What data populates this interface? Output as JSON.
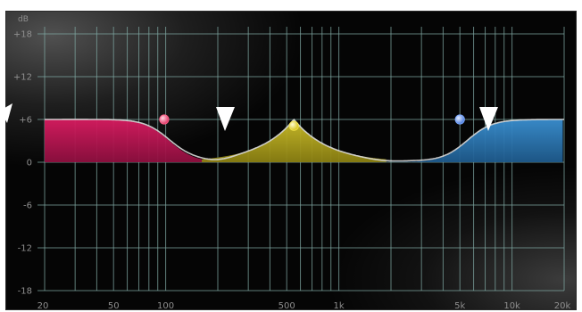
{
  "unit_label": "dB",
  "y_axis": {
    "ticks": [
      {
        "value": 18,
        "label": "+18"
      },
      {
        "value": 12,
        "label": "+12"
      },
      {
        "value": 6,
        "label": "+6"
      },
      {
        "value": 0,
        "label": "0"
      },
      {
        "value": -6,
        "label": "-6"
      },
      {
        "value": -12,
        "label": "-12"
      },
      {
        "value": -18,
        "label": "-18"
      }
    ],
    "range": [
      -18,
      18
    ]
  },
  "x_axis": {
    "scale": "log",
    "range_hz": [
      20,
      20000
    ],
    "ticks": [
      {
        "hz": 20,
        "label": "20"
      },
      {
        "hz": 50,
        "label": "50"
      },
      {
        "hz": 100,
        "label": "100"
      },
      {
        "hz": 500,
        "label": "500"
      },
      {
        "hz": 1000,
        "label": "1k"
      },
      {
        "hz": 5000,
        "label": "5k"
      },
      {
        "hz": 10000,
        "label": "10k"
      },
      {
        "hz": 20000,
        "label": "20k"
      }
    ]
  },
  "bands": [
    {
      "name": "low-shelf",
      "color": "#c2185b",
      "handle_color": "#ff5e86",
      "freq_hz": 100,
      "gain_db": 6
    },
    {
      "name": "mid-peak",
      "color": "#b3a51e",
      "handle_color": "#f2e24a",
      "freq_hz": 550,
      "gain_db": 6
    },
    {
      "name": "high-shelf",
      "color": "#2f7cb8",
      "handle_color": "#7aa8ff",
      "freq_hz": 5000,
      "gain_db": 6
    }
  ],
  "colors": {
    "background": "#050505",
    "grid": "#7ea5a0",
    "curve": "#d9d9d9",
    "label": "#8f8f8f",
    "arrow": "#ffffff"
  },
  "annotation_arrows": [
    {
      "name": "arrow-left-edge"
    },
    {
      "name": "arrow-low-mid-dip"
    },
    {
      "name": "arrow-high-shelf"
    }
  ]
}
